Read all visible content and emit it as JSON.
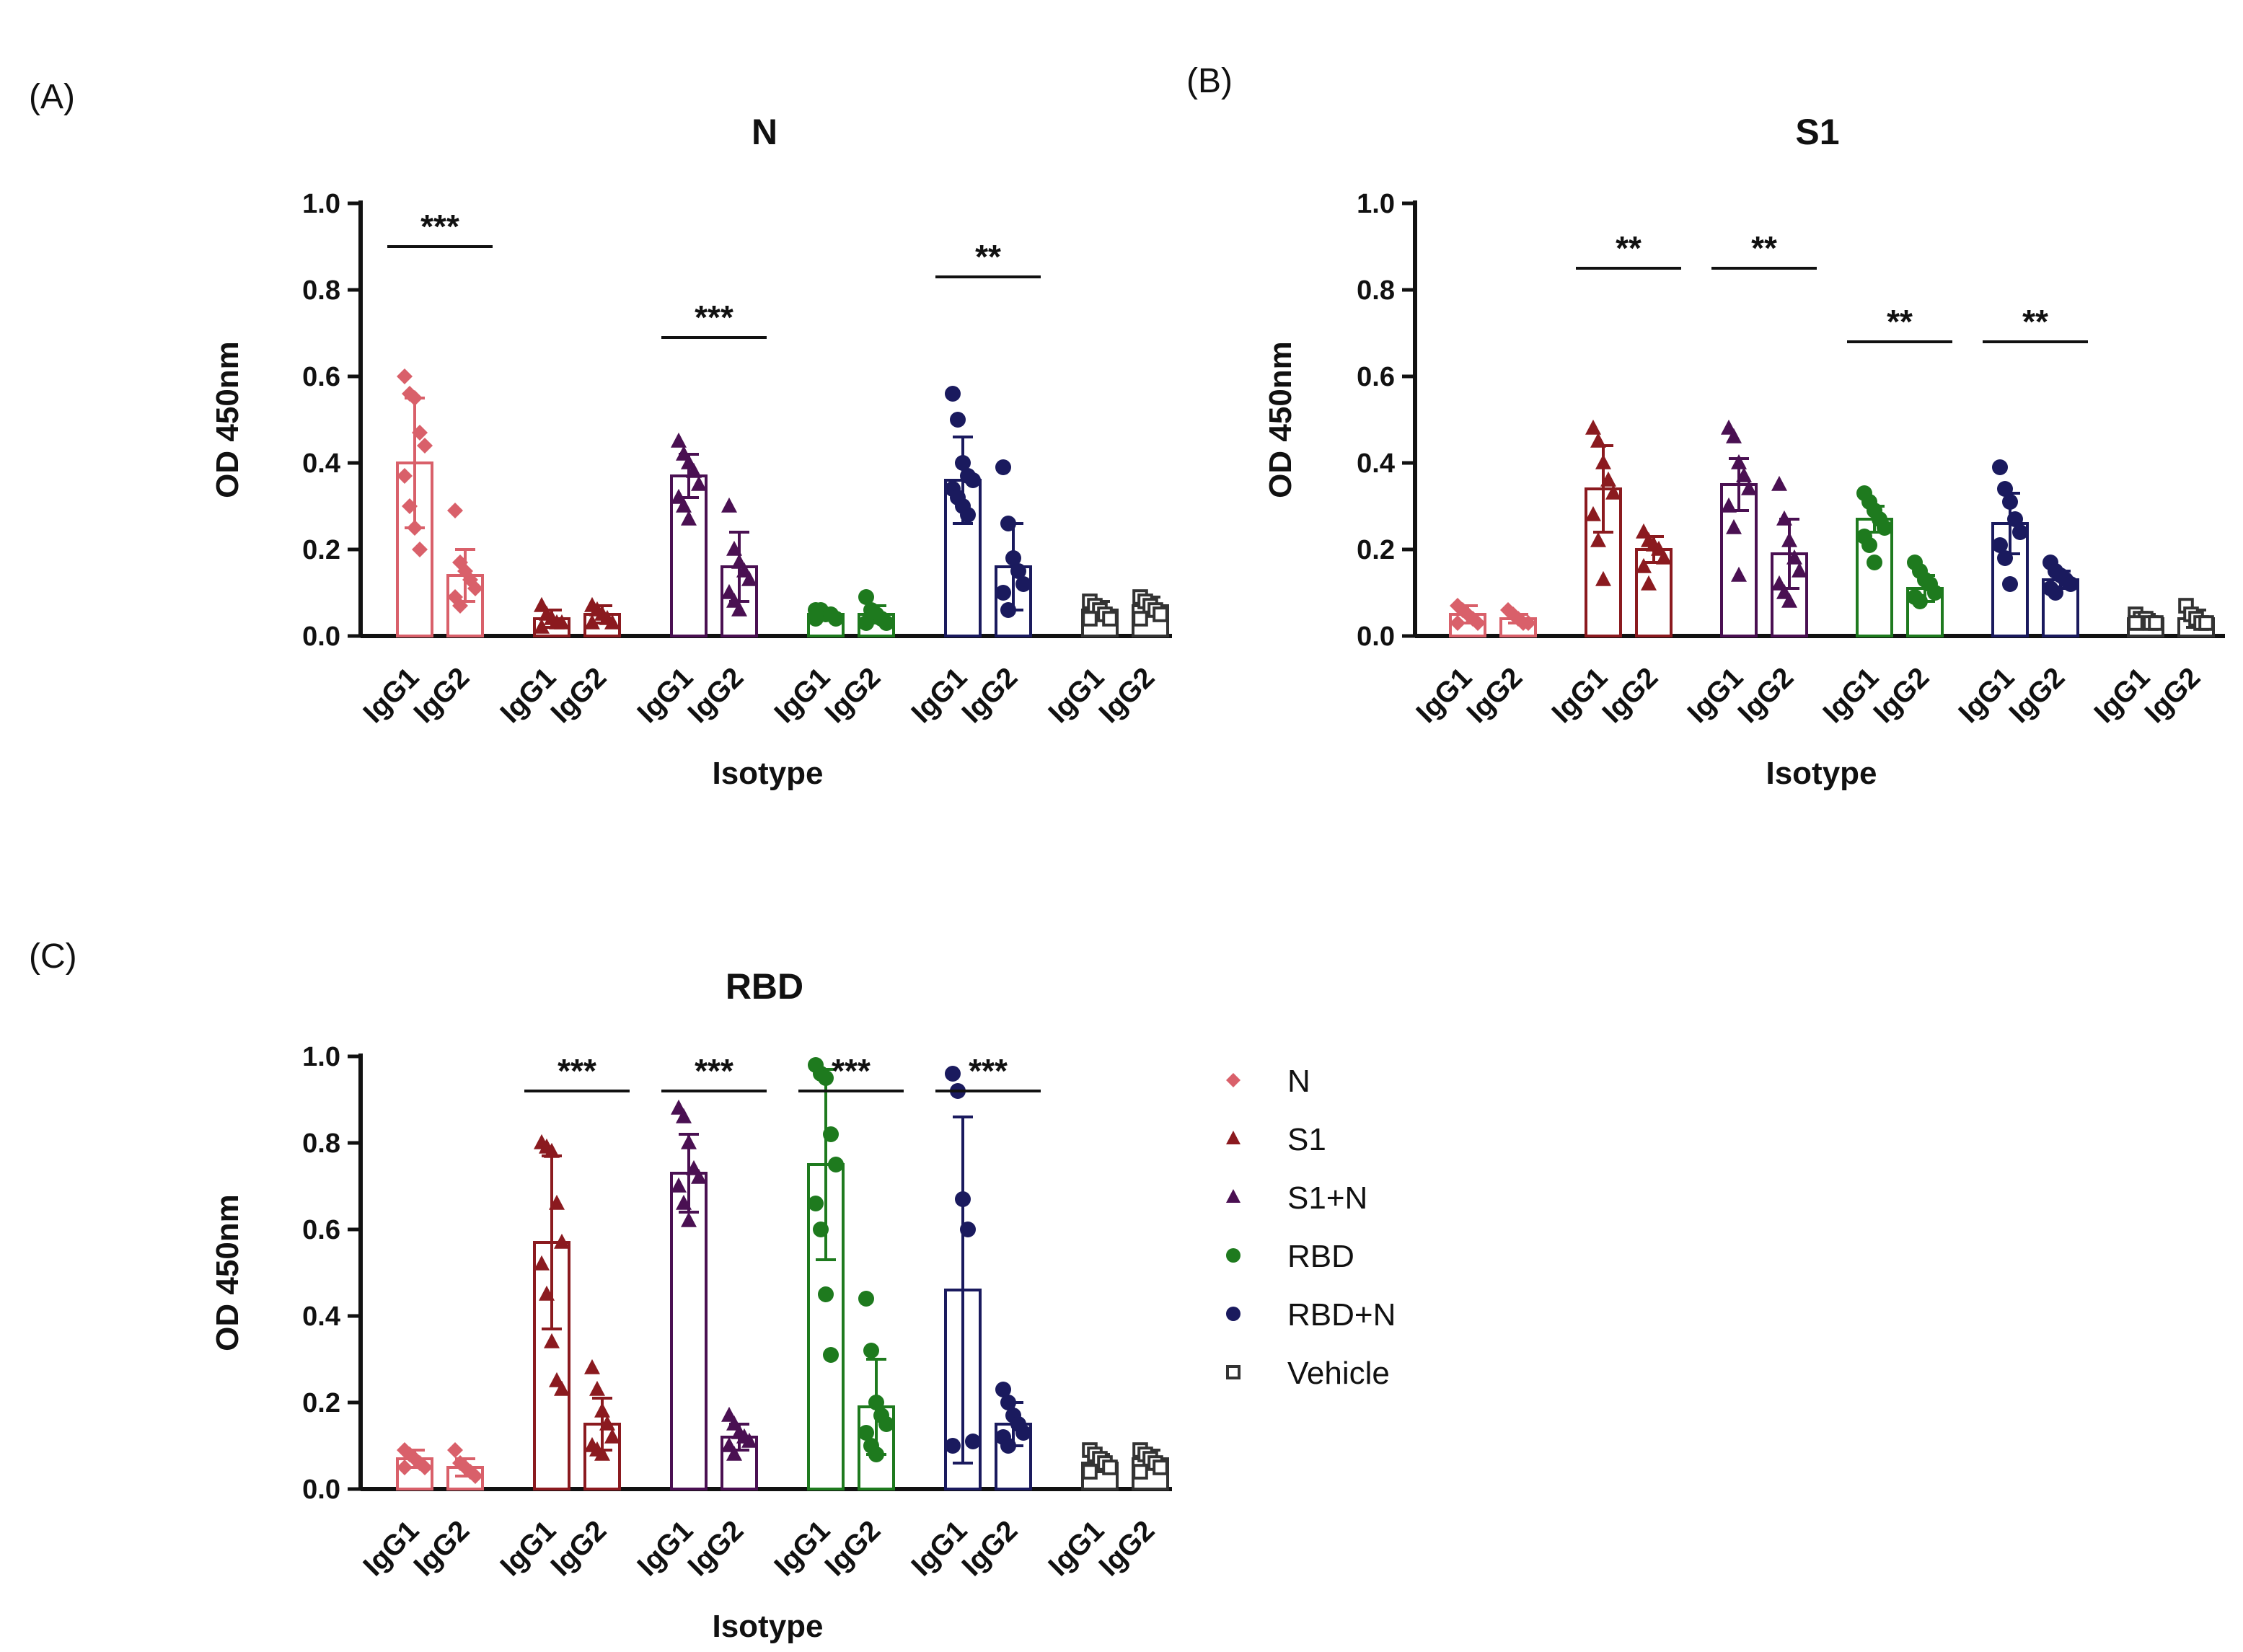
{
  "legend": {
    "entries": [
      {
        "name": "N",
        "color": "#D9606A",
        "marker": "diamond"
      },
      {
        "name": "S1",
        "color": "#8B1A1F",
        "marker": "triangle"
      },
      {
        "name": "S1+N",
        "color": "#4A1052",
        "marker": "triangle"
      },
      {
        "name": "RBD",
        "color": "#1E7A1E",
        "marker": "circle"
      },
      {
        "name": "RBD+N",
        "color": "#1A1A5E",
        "marker": "circle"
      },
      {
        "name": "Vehicle",
        "color": "#333333",
        "marker": "square-open"
      }
    ]
  },
  "chart_data": [
    {
      "panel": "(A)",
      "type": "bar",
      "title": "N",
      "xlabel": "Isotype",
      "ylabel": "OD 450nm",
      "ylim": [
        0,
        1.0
      ],
      "yticks": [
        "0.0",
        "0.2",
        "0.4",
        "0.6",
        "0.8",
        "1.0"
      ],
      "categories": [
        "IgG1",
        "IgG2"
      ],
      "groups": [
        {
          "name": "N",
          "means": [
            0.4,
            0.14
          ],
          "errors": [
            0.15,
            0.06
          ],
          "points": [
            [
              0.6,
              0.56,
              0.55,
              0.47,
              0.44,
              0.37,
              0.3,
              0.25,
              0.2
            ],
            [
              0.29,
              0.17,
              0.15,
              0.13,
              0.11,
              0.09,
              0.07
            ]
          ]
        },
        {
          "name": "S1",
          "means": [
            0.04,
            0.05
          ],
          "errors": [
            0.02,
            0.02
          ],
          "points": [
            [
              0.07,
              0.05,
              0.04,
              0.03,
              0.03,
              0.02
            ],
            [
              0.07,
              0.06,
              0.05,
              0.04,
              0.03,
              0.03
            ]
          ]
        },
        {
          "name": "S1+N",
          "means": [
            0.37,
            0.16
          ],
          "errors": [
            0.05,
            0.08
          ],
          "points": [
            [
              0.45,
              0.42,
              0.4,
              0.38,
              0.35,
              0.32,
              0.3,
              0.27
            ],
            [
              0.3,
              0.2,
              0.17,
              0.15,
              0.13,
              0.1,
              0.08,
              0.06
            ]
          ]
        },
        {
          "name": "RBD",
          "means": [
            0.05,
            0.05
          ],
          "errors": [
            0.01,
            0.02
          ],
          "points": [
            [
              0.06,
              0.06,
              0.05,
              0.05,
              0.04,
              0.04
            ],
            [
              0.09,
              0.06,
              0.05,
              0.04,
              0.03,
              0.03
            ]
          ]
        },
        {
          "name": "RBD+N",
          "means": [
            0.36,
            0.16
          ],
          "errors": [
            0.1,
            0.1
          ],
          "points": [
            [
              0.56,
              0.5,
              0.4,
              0.37,
              0.36,
              0.34,
              0.32,
              0.3,
              0.28
            ],
            [
              0.39,
              0.26,
              0.18,
              0.15,
              0.12,
              0.1,
              0.06
            ]
          ]
        },
        {
          "name": "Vehicle",
          "means": [
            0.06,
            0.07
          ],
          "errors": [
            0.02,
            0.02
          ],
          "points": [
            [
              0.08,
              0.07,
              0.06,
              0.05,
              0.04,
              0.04
            ],
            [
              0.09,
              0.08,
              0.07,
              0.06,
              0.05,
              0.04
            ]
          ]
        }
      ],
      "significance": [
        {
          "group": "N",
          "label": "***",
          "y": 0.9
        },
        {
          "group": "S1+N",
          "label": "***",
          "y": 0.69
        },
        {
          "group": "RBD+N",
          "label": "**",
          "y": 0.83
        }
      ]
    },
    {
      "panel": "(B)",
      "type": "bar",
      "title": "S1",
      "xlabel": "Isotype",
      "ylabel": "OD 450nm",
      "ylim": [
        0,
        1.0
      ],
      "yticks": [
        "0.0",
        "0.2",
        "0.4",
        "0.6",
        "0.8",
        "1.0"
      ],
      "categories": [
        "IgG1",
        "IgG2"
      ],
      "groups": [
        {
          "name": "N",
          "means": [
            0.05,
            0.04
          ],
          "errors": [
            0.02,
            0.01
          ],
          "points": [
            [
              0.07,
              0.06,
              0.05,
              0.04,
              0.03,
              0.03
            ],
            [
              0.06,
              0.05,
              0.04,
              0.03,
              0.03
            ]
          ]
        },
        {
          "name": "S1",
          "means": [
            0.34,
            0.2
          ],
          "errors": [
            0.1,
            0.03
          ],
          "points": [
            [
              0.48,
              0.45,
              0.4,
              0.36,
              0.33,
              0.28,
              0.22,
              0.13
            ],
            [
              0.24,
              0.22,
              0.21,
              0.2,
              0.18,
              0.16,
              0.12
            ]
          ]
        },
        {
          "name": "S1+N",
          "means": [
            0.35,
            0.19
          ],
          "errors": [
            0.06,
            0.08
          ],
          "points": [
            [
              0.48,
              0.46,
              0.4,
              0.37,
              0.34,
              0.3,
              0.25,
              0.14
            ],
            [
              0.35,
              0.27,
              0.22,
              0.18,
              0.15,
              0.12,
              0.1,
              0.08
            ]
          ]
        },
        {
          "name": "RBD",
          "means": [
            0.27,
            0.11
          ],
          "errors": [
            0.03,
            0.03
          ],
          "points": [
            [
              0.33,
              0.31,
              0.29,
              0.27,
              0.25,
              0.23,
              0.21,
              0.17
            ],
            [
              0.17,
              0.15,
              0.13,
              0.12,
              0.1,
              0.09,
              0.08
            ]
          ]
        },
        {
          "name": "RBD+N",
          "means": [
            0.26,
            0.13
          ],
          "errors": [
            0.07,
            0.02
          ],
          "points": [
            [
              0.39,
              0.34,
              0.31,
              0.27,
              0.24,
              0.21,
              0.18,
              0.12
            ],
            [
              0.17,
              0.15,
              0.14,
              0.13,
              0.12,
              0.11,
              0.1
            ]
          ]
        },
        {
          "name": "Vehicle",
          "means": [
            0.04,
            0.04
          ],
          "errors": [
            0.01,
            0.02
          ],
          "points": [
            [
              0.05,
              0.04,
              0.04,
              0.03,
              0.03,
              0.03
            ],
            [
              0.07,
              0.05,
              0.04,
              0.03,
              0.03
            ]
          ]
        }
      ],
      "significance": [
        {
          "group": "S1",
          "label": "**",
          "y": 0.85
        },
        {
          "group": "S1+N",
          "label": "**",
          "y": 0.85
        },
        {
          "group": "RBD",
          "label": "**",
          "y": 0.68
        },
        {
          "group": "RBD+N",
          "label": "**",
          "y": 0.68
        }
      ]
    },
    {
      "panel": "(C)",
      "type": "bar",
      "title": "RBD",
      "xlabel": "Isotype",
      "ylabel": "OD 450nm",
      "ylim": [
        0,
        1.0
      ],
      "yticks": [
        "0.0",
        "0.2",
        "0.4",
        "0.6",
        "0.8",
        "1.0"
      ],
      "categories": [
        "IgG1",
        "IgG2"
      ],
      "groups": [
        {
          "name": "N",
          "means": [
            0.07,
            0.05
          ],
          "errors": [
            0.02,
            0.02
          ],
          "points": [
            [
              0.09,
              0.08,
              0.07,
              0.06,
              0.05,
              0.05
            ],
            [
              0.09,
              0.06,
              0.05,
              0.04,
              0.03
            ]
          ]
        },
        {
          "name": "S1",
          "means": [
            0.57,
            0.15
          ],
          "errors": [
            0.2,
            0.06
          ],
          "points": [
            [
              0.8,
              0.79,
              0.78,
              0.66,
              0.57,
              0.52,
              0.45,
              0.34,
              0.25,
              0.23
            ],
            [
              0.28,
              0.23,
              0.18,
              0.15,
              0.12,
              0.1,
              0.09,
              0.08
            ]
          ]
        },
        {
          "name": "S1+N",
          "means": [
            0.73,
            0.12
          ],
          "errors": [
            0.09,
            0.03
          ],
          "points": [
            [
              0.88,
              0.86,
              0.8,
              0.74,
              0.72,
              0.7,
              0.66,
              0.62
            ],
            [
              0.17,
              0.15,
              0.13,
              0.12,
              0.11,
              0.1,
              0.08
            ]
          ]
        },
        {
          "name": "RBD",
          "means": [
            0.75,
            0.19
          ],
          "errors": [
            0.22,
            0.11
          ],
          "points": [
            [
              0.98,
              0.96,
              0.95,
              0.82,
              0.75,
              0.66,
              0.6,
              0.45,
              0.31
            ],
            [
              0.44,
              0.32,
              0.2,
              0.17,
              0.15,
              0.13,
              0.1,
              0.08
            ]
          ]
        },
        {
          "name": "RBD+N",
          "means": [
            0.46,
            0.15
          ],
          "errors": [
            0.4,
            0.05
          ],
          "points": [
            [
              0.96,
              0.92,
              0.67,
              0.6,
              0.11,
              0.1
            ],
            [
              0.23,
              0.2,
              0.17,
              0.15,
              0.13,
              0.12,
              0.1
            ]
          ]
        },
        {
          "name": "Vehicle",
          "means": [
            0.06,
            0.07
          ],
          "errors": [
            0.02,
            0.02
          ],
          "points": [
            [
              0.09,
              0.08,
              0.07,
              0.06,
              0.05,
              0.04
            ],
            [
              0.09,
              0.08,
              0.07,
              0.06,
              0.05,
              0.04
            ]
          ]
        }
      ],
      "significance": [
        {
          "group": "S1",
          "label": "***",
          "y": 0.92
        },
        {
          "group": "S1+N",
          "label": "***",
          "y": 0.92
        },
        {
          "group": "RBD",
          "label": "***",
          "y": 0.92
        },
        {
          "group": "RBD+N",
          "label": "***",
          "y": 0.92
        }
      ]
    }
  ]
}
